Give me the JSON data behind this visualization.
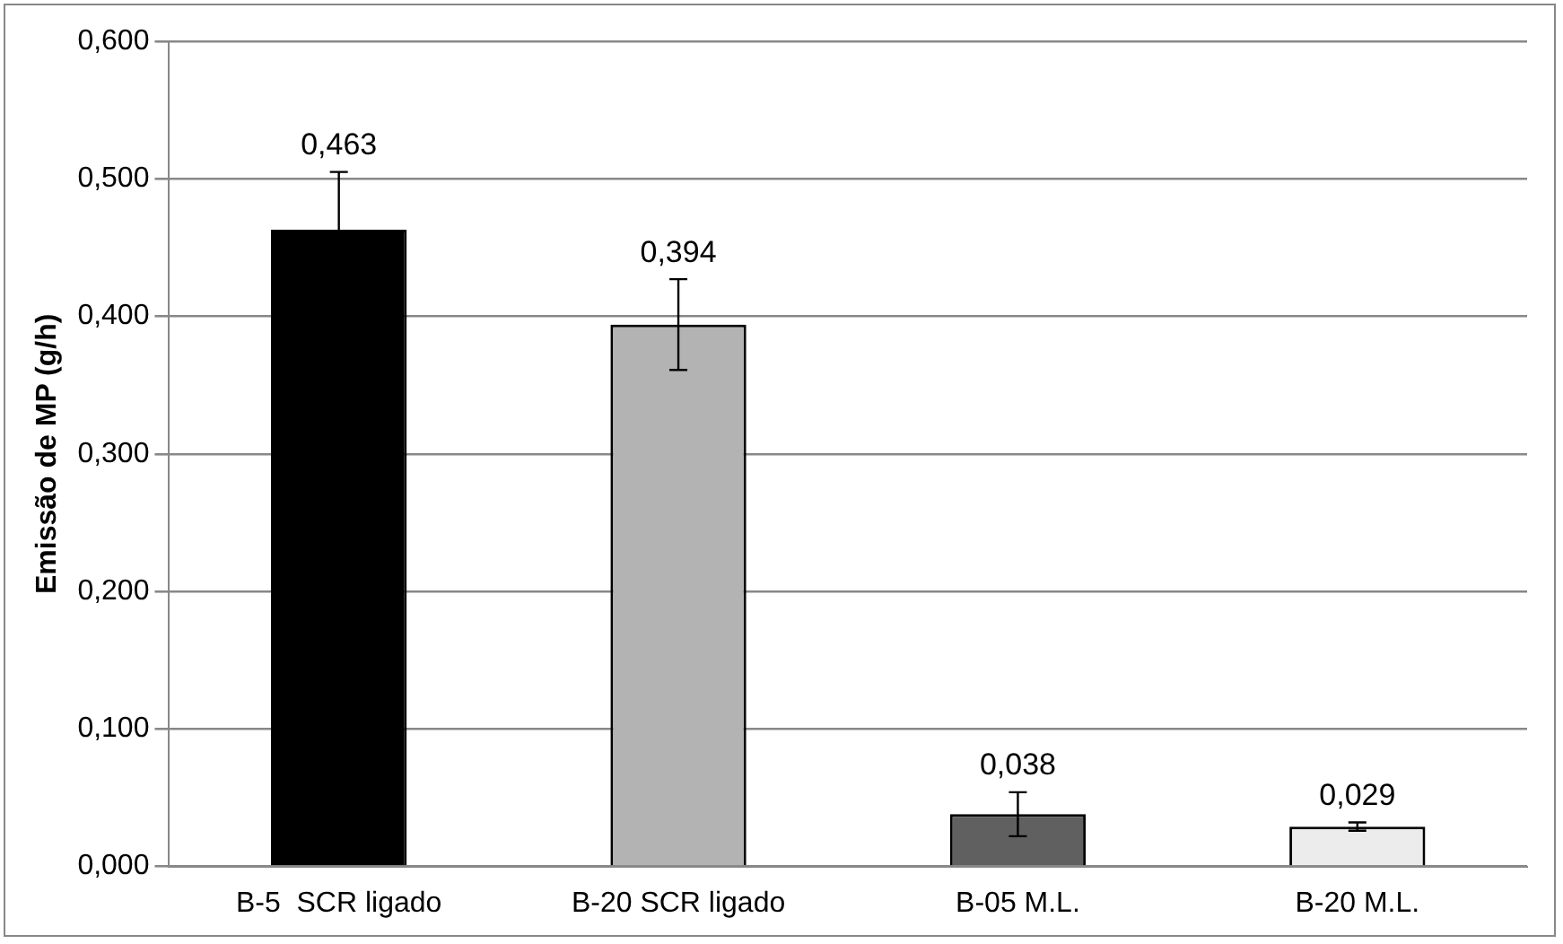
{
  "chart_data": {
    "type": "bar",
    "ylabel": "Emissão de MP (g/h)",
    "categories": [
      "B-5  SCR ligado",
      "B-20 SCR ligado",
      "B-05 M.L.",
      "B-20 M.L."
    ],
    "values": [
      0.463,
      0.394,
      0.038,
      0.029
    ],
    "colors": [
      "#000000",
      "#b3b3b3",
      "#606060",
      "#ececec"
    ],
    "errors": [
      0.042,
      0.033,
      0.016,
      0.003
    ],
    "value_labels": [
      "0,463",
      "0,394",
      "0,038",
      "0,029"
    ],
    "ylim": [
      0,
      0.6
    ],
    "yticks": [
      {
        "value": 0,
        "label": "0,000"
      },
      {
        "value": 0.1,
        "label": "0,100"
      },
      {
        "value": 0.2,
        "label": "0,200"
      },
      {
        "value": 0.3,
        "label": "0,300"
      },
      {
        "value": 0.4,
        "label": "0,400"
      },
      {
        "value": 0.5,
        "label": "0,500"
      },
      {
        "value": 0.6,
        "label": "0,600"
      }
    ],
    "grid": "y",
    "legend": false
  }
}
